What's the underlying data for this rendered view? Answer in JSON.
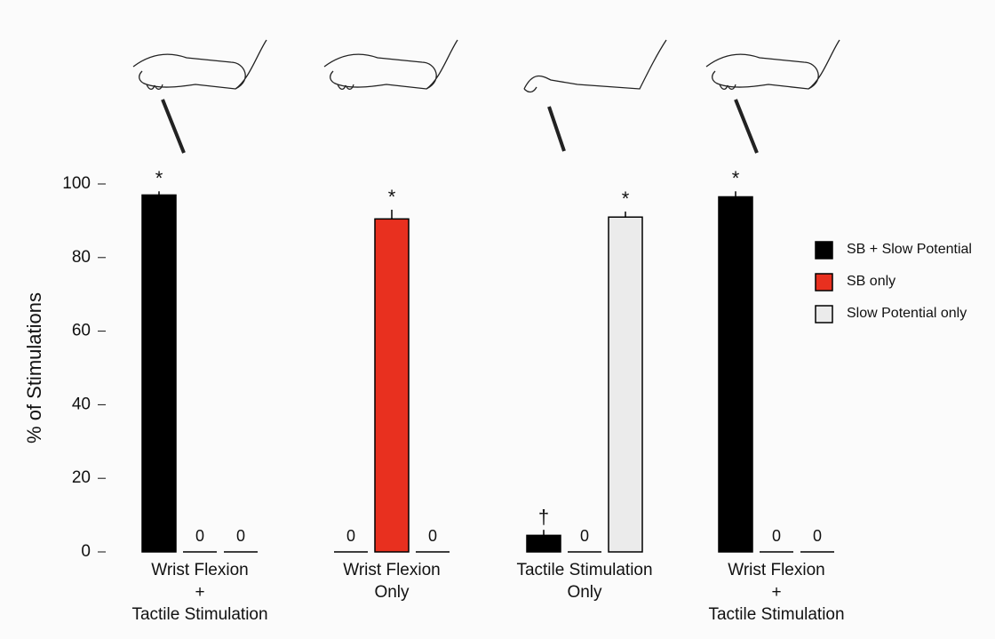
{
  "chart_data": {
    "type": "bar",
    "y_label": "% of Stimulations",
    "categories": [
      [
        "Wrist Flexion",
        "+",
        "Tactile Stimulation"
      ],
      [
        "Wrist Flexion",
        "Only"
      ],
      [
        "Tactile Stimulation",
        "Only"
      ],
      [
        "Wrist Flexion",
        "+",
        "Tactile Stimulation"
      ]
    ],
    "series": [
      {
        "name": "SB + Slow Potential",
        "color": "#000000",
        "values": [
          97,
          0,
          4.5,
          96.5
        ],
        "errors": [
          1,
          null,
          1.5,
          1.5
        ],
        "value_labels": [
          null,
          "0",
          null,
          null
        ],
        "annotations": [
          "*",
          null,
          "†",
          "*"
        ]
      },
      {
        "name": "SB only",
        "color": "#e8301f",
        "values": [
          0,
          90.5,
          0,
          0
        ],
        "errors": [
          null,
          2.5,
          null,
          null
        ],
        "value_labels": [
          "0",
          null,
          "0",
          "0"
        ],
        "annotations": [
          null,
          "*",
          null,
          null
        ]
      },
      {
        "name": "Slow Potential only",
        "color": "#ebebeb",
        "values": [
          0,
          0,
          91,
          0
        ],
        "errors": [
          null,
          null,
          1.5,
          null
        ],
        "value_labels": [
          "0",
          "0",
          null,
          "0"
        ],
        "annotations": [
          null,
          null,
          "*",
          null
        ]
      }
    ],
    "ylim": [
      0,
      100
    ],
    "yticks": [
      0,
      20,
      40,
      60,
      80,
      100
    ],
    "legend": "right"
  }
}
